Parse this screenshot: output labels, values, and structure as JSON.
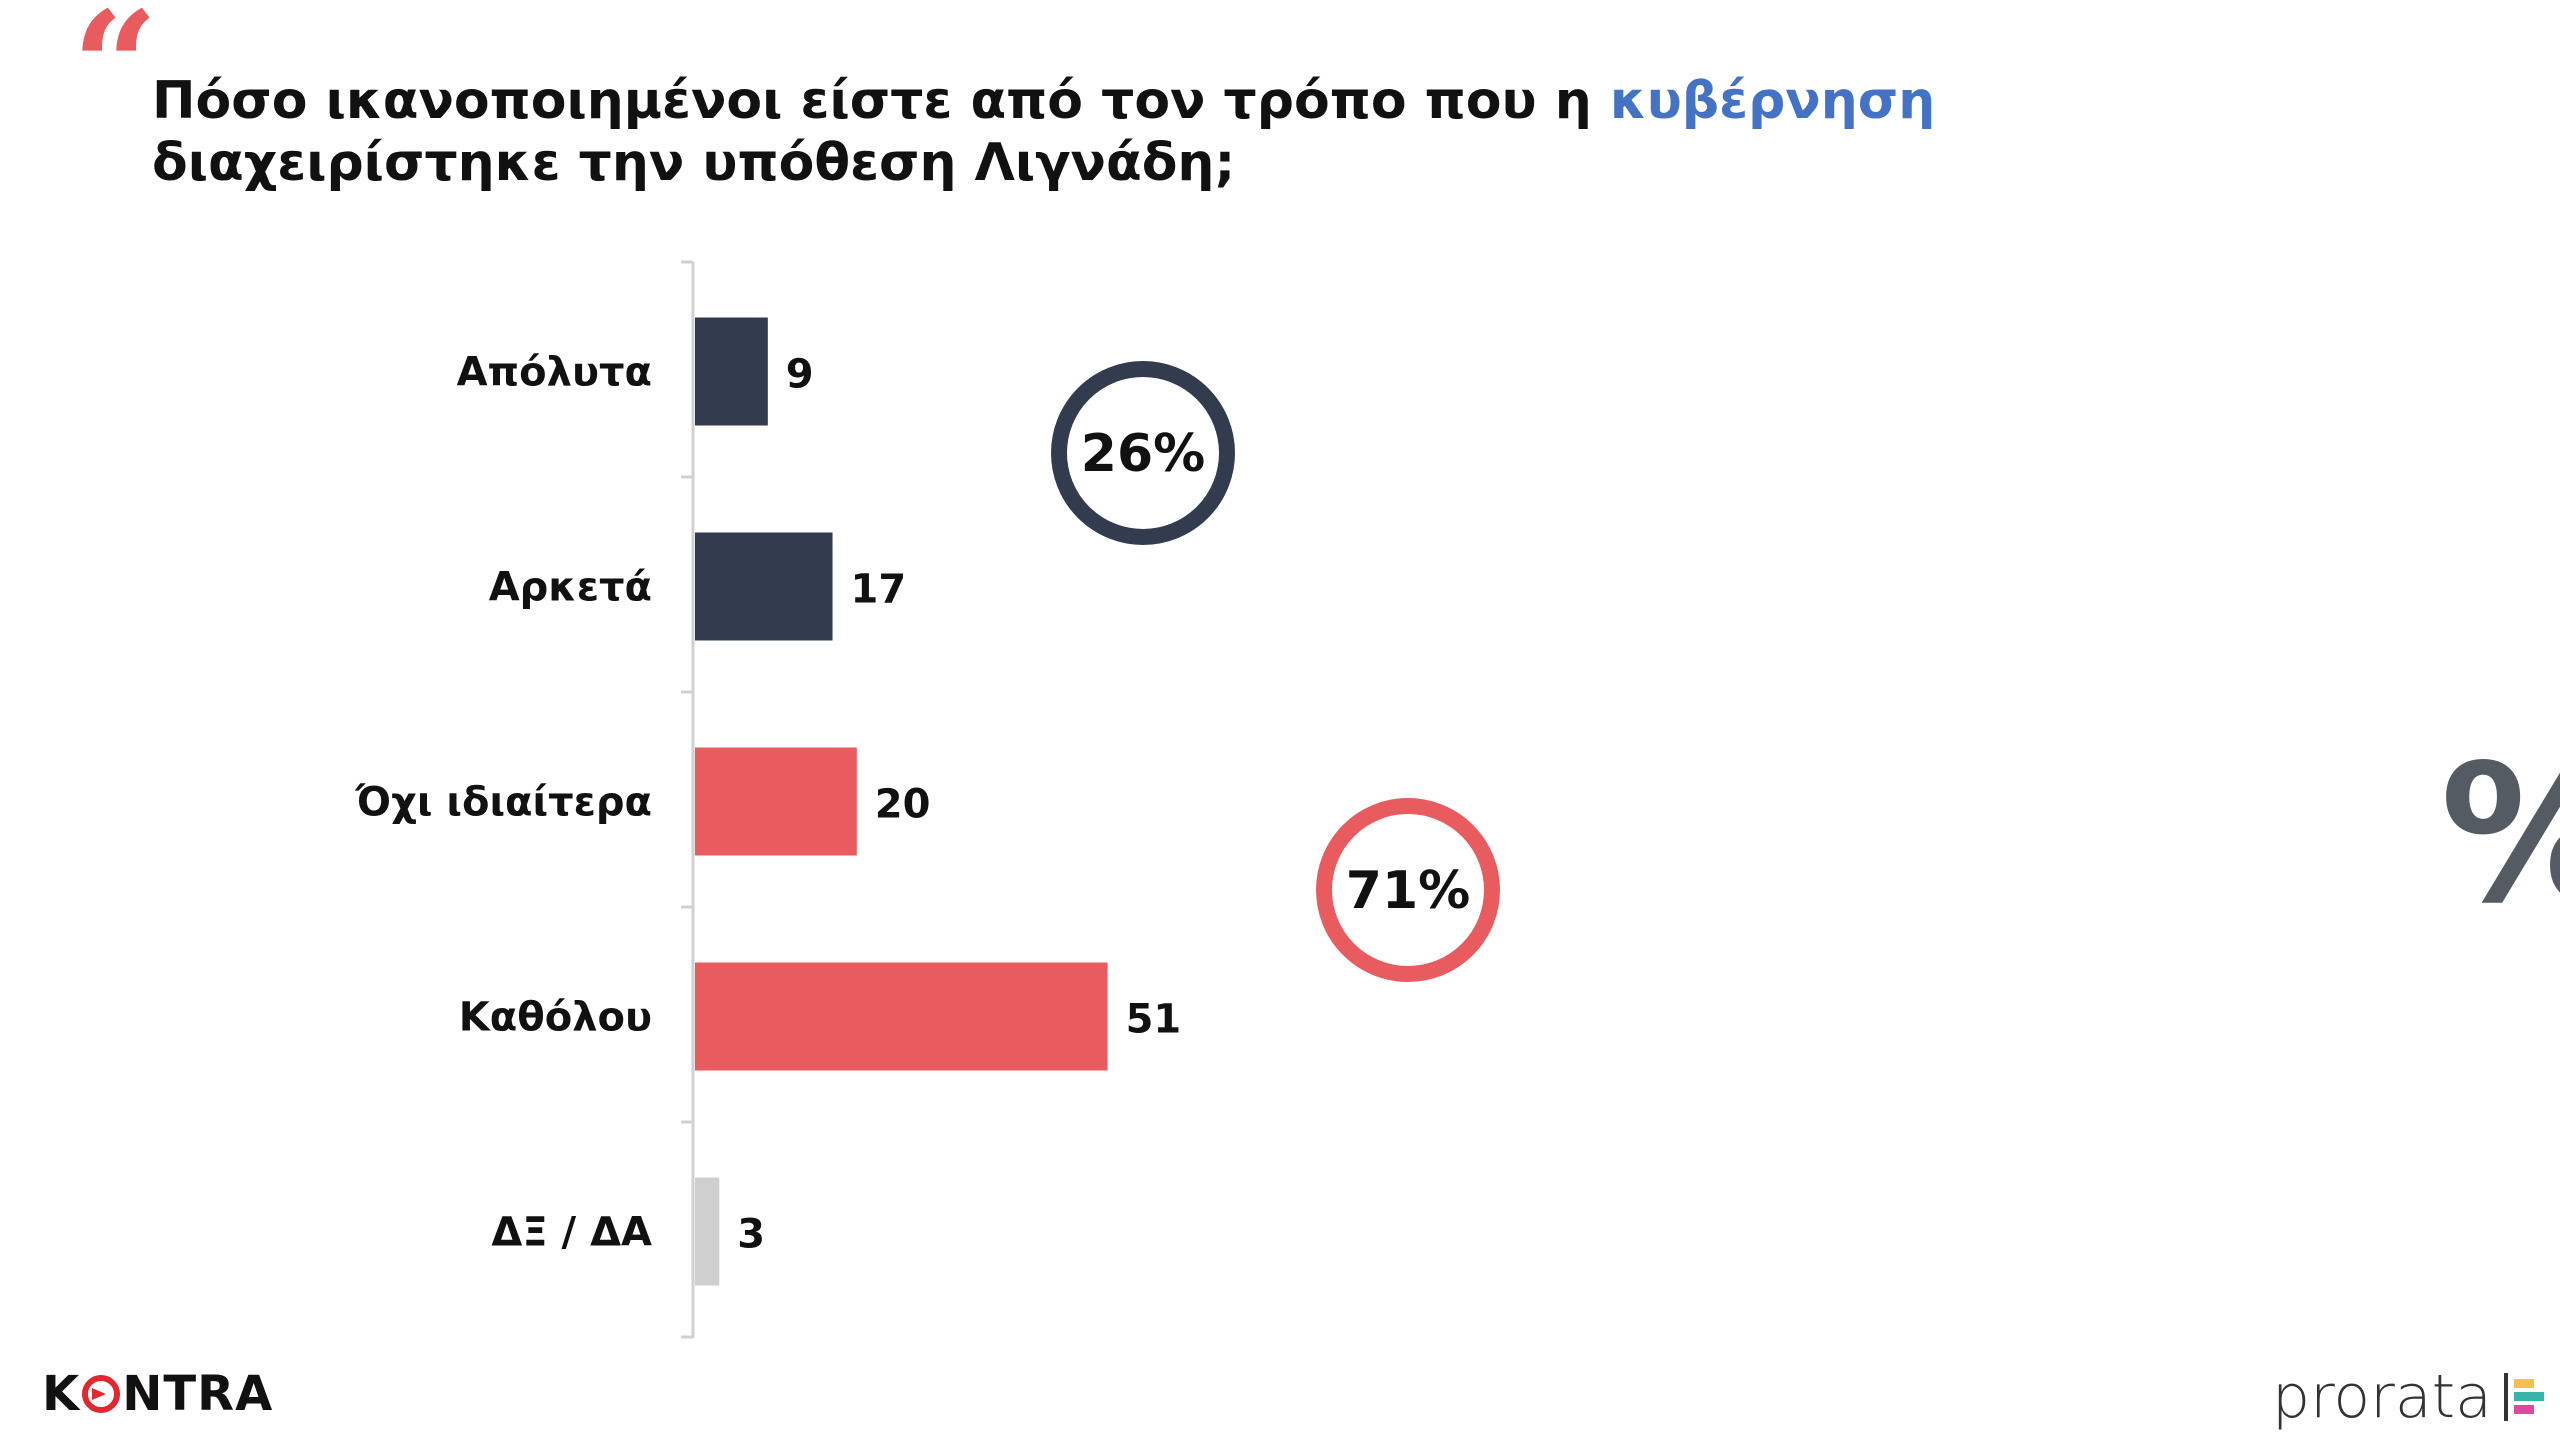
{
  "header": {
    "quote_symbol": "“",
    "question_part1": "Πόσο ικανοποιημένοι είστε από τον τρόπο που η ",
    "question_highlight": "κυβέρνηση",
    "question_part2": " διαχειρίστηκε την υπόθεση Λιγνάδη;"
  },
  "chart_data": {
    "type": "bar",
    "orientation": "horizontal",
    "categories": [
      "Απόλυτα",
      "Αρκετά",
      "Όχι ιδιαίτερα",
      "Καθόλου",
      "ΔΞ / ΔΑ"
    ],
    "values": [
      9,
      17,
      20,
      51,
      3
    ],
    "bar_colors": [
      "#323c4e",
      "#323c4e",
      "#e85c5f",
      "#e85c5f",
      "#cfcfcf"
    ],
    "unit_symbol": "%",
    "groups": [
      {
        "label": "26%",
        "value": 26,
        "color": "#323c4e"
      },
      {
        "label": "71%",
        "value": 71,
        "color": "#e85c5f"
      }
    ],
    "grid": false,
    "legend": "none"
  },
  "logos": {
    "left": {
      "pre": "K",
      "post": "NTRA"
    },
    "right": {
      "text": "prorata"
    }
  },
  "colors": {
    "accent_blue": "#4472c4",
    "dark_navy": "#323c4e",
    "coral": "#e85c5f",
    "grey": "#cfcfcf"
  }
}
